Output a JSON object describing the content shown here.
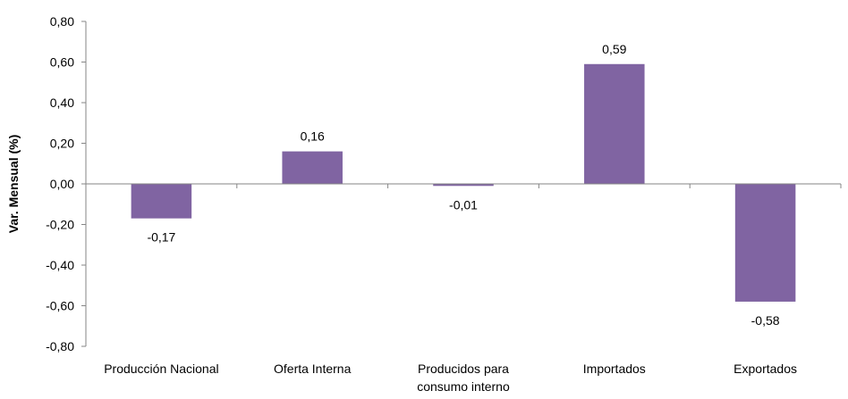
{
  "chart_data": {
    "type": "bar",
    "categories": [
      [
        "Producción Nacional"
      ],
      [
        "Oferta Interna"
      ],
      [
        "Producidos para",
        "consumo interno"
      ],
      [
        "Importados"
      ],
      [
        "Exportados"
      ]
    ],
    "values": [
      -0.17,
      0.16,
      -0.01,
      0.59,
      -0.58
    ],
    "data_labels": [
      "-0,17",
      "0,16",
      "-0,01",
      "0,59",
      "-0,58"
    ],
    "ylabel": "Var. Mensual (%)",
    "ylim": [
      -0.8,
      0.8
    ],
    "yticks": [
      0.8,
      0.6,
      0.4,
      0.2,
      0.0,
      -0.2,
      -0.4,
      -0.6,
      -0.8
    ],
    "ytick_labels": [
      "0,80",
      "0,60",
      "0,40",
      "0,20",
      "0,00",
      "-0,20",
      "-0,40",
      "-0,60",
      "-0,80"
    ],
    "grid": false,
    "legend": "none",
    "colors": {
      "bar": "#8064A2",
      "axis": "#868686"
    }
  }
}
